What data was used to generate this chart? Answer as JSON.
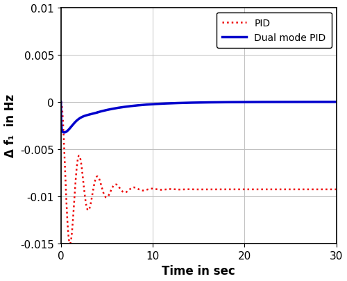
{
  "xlim": [
    0,
    30
  ],
  "ylim": [
    -0.015,
    0.01
  ],
  "xlabel": "Time in sec",
  "ylabel": "Δ f₁  in Hz",
  "xticks": [
    0,
    10,
    20,
    30
  ],
  "yticks": [
    -0.015,
    -0.01,
    -0.005,
    0,
    0.005,
    0.01
  ],
  "grid": true,
  "legend_labels": [
    "PID",
    "Dual mode PID"
  ],
  "pid_color": "#EE0000",
  "dual_color": "#0000CC",
  "background_color": "#ffffff",
  "linewidth_dual": 2.5,
  "linewidth_pid": 1.8,
  "figsize": [
    5.0,
    4.06
  ],
  "dpi": 100,
  "tick_fontsize": 11,
  "label_fontsize": 12,
  "legend_fontsize": 10
}
